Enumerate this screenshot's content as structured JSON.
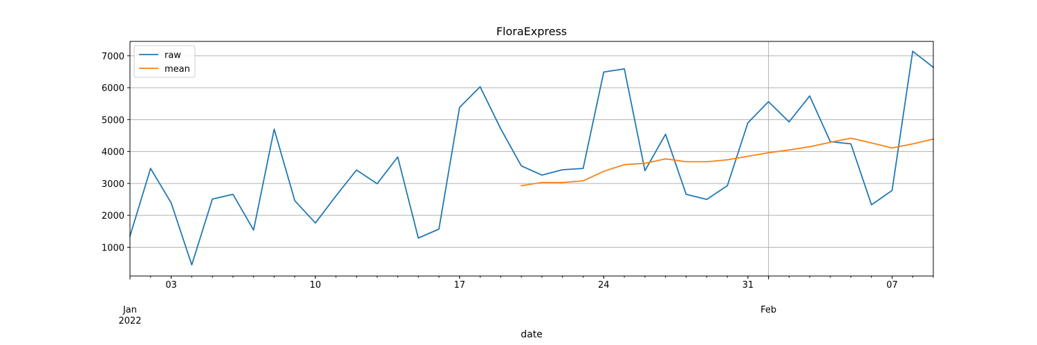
{
  "chart_data": {
    "type": "line",
    "title": "FloraExpress",
    "xlabel": "date",
    "ylabel": "",
    "x_start": "2022-01-01",
    "x_end": "2022-02-09",
    "xlim": [
      "2022-01-01",
      "2022-02-09"
    ],
    "ylim": [
      100,
      7450
    ],
    "grid": true,
    "legend": "top-left",
    "x_ticks": [
      {
        "date": "2022-01-03",
        "label": "03"
      },
      {
        "date": "2022-01-10",
        "label": "10"
      },
      {
        "date": "2022-01-17",
        "label": "17"
      },
      {
        "date": "2022-01-24",
        "label": "24"
      },
      {
        "date": "2022-01-31",
        "label": "31"
      },
      {
        "date": "2022-02-07",
        "label": "07"
      }
    ],
    "x_major_ticks": [
      {
        "date": "2022-01-01",
        "line1": "Jan",
        "line2": "2022"
      },
      {
        "date": "2022-02-01",
        "line1": "Feb",
        "line2": ""
      }
    ],
    "y_ticks": [
      1000,
      2000,
      3000,
      4000,
      5000,
      6000,
      7000
    ],
    "series": [
      {
        "name": "raw",
        "color": "#1f77b4",
        "points": [
          [
            "2022-01-01",
            1350
          ],
          [
            "2022-01-02",
            3470
          ],
          [
            "2022-01-03",
            2390
          ],
          [
            "2022-01-04",
            450
          ],
          [
            "2022-01-05",
            2510
          ],
          [
            "2022-01-06",
            2660
          ],
          [
            "2022-01-07",
            1540
          ],
          [
            "2022-01-08",
            4700
          ],
          [
            "2022-01-09",
            2460
          ],
          [
            "2022-01-10",
            1760
          ],
          [
            "2022-01-11",
            2610
          ],
          [
            "2022-01-12",
            3420
          ],
          [
            "2022-01-13",
            2990
          ],
          [
            "2022-01-14",
            3830
          ],
          [
            "2022-01-15",
            1290
          ],
          [
            "2022-01-16",
            1570
          ],
          [
            "2022-01-17",
            5380
          ],
          [
            "2022-01-18",
            6030
          ],
          [
            "2022-01-19",
            4710
          ],
          [
            "2022-01-20",
            3550
          ],
          [
            "2022-01-21",
            3260
          ],
          [
            "2022-01-22",
            3430
          ],
          [
            "2022-01-23",
            3470
          ],
          [
            "2022-01-24",
            6490
          ],
          [
            "2022-01-25",
            6590
          ],
          [
            "2022-01-26",
            3400
          ],
          [
            "2022-01-27",
            4540
          ],
          [
            "2022-01-28",
            2660
          ],
          [
            "2022-01-29",
            2500
          ],
          [
            "2022-01-30",
            2930
          ],
          [
            "2022-01-31",
            4900
          ],
          [
            "2022-02-01",
            5560
          ],
          [
            "2022-02-02",
            4930
          ],
          [
            "2022-02-03",
            5740
          ],
          [
            "2022-02-04",
            4310
          ],
          [
            "2022-02-05",
            4240
          ],
          [
            "2022-02-06",
            2330
          ],
          [
            "2022-02-07",
            2780
          ],
          [
            "2022-02-08",
            7140
          ],
          [
            "2022-02-09",
            6640
          ]
        ]
      },
      {
        "name": "mean",
        "color": "#ff7f0e",
        "points": [
          [
            "2022-01-20",
            2930
          ],
          [
            "2022-01-21",
            3030
          ],
          [
            "2022-01-22",
            3030
          ],
          [
            "2022-01-23",
            3080
          ],
          [
            "2022-01-24",
            3380
          ],
          [
            "2022-01-25",
            3590
          ],
          [
            "2022-01-26",
            3630
          ],
          [
            "2022-01-27",
            3770
          ],
          [
            "2022-01-28",
            3680
          ],
          [
            "2022-01-29",
            3680
          ],
          [
            "2022-01-30",
            3740
          ],
          [
            "2022-01-31",
            3850
          ],
          [
            "2022-02-01",
            3960
          ],
          [
            "2022-02-02",
            4050
          ],
          [
            "2022-02-03",
            4150
          ],
          [
            "2022-02-04",
            4290
          ],
          [
            "2022-02-05",
            4420
          ],
          [
            "2022-02-06",
            4270
          ],
          [
            "2022-02-07",
            4110
          ],
          [
            "2022-02-08",
            4240
          ],
          [
            "2022-02-09",
            4390
          ]
        ]
      }
    ]
  }
}
